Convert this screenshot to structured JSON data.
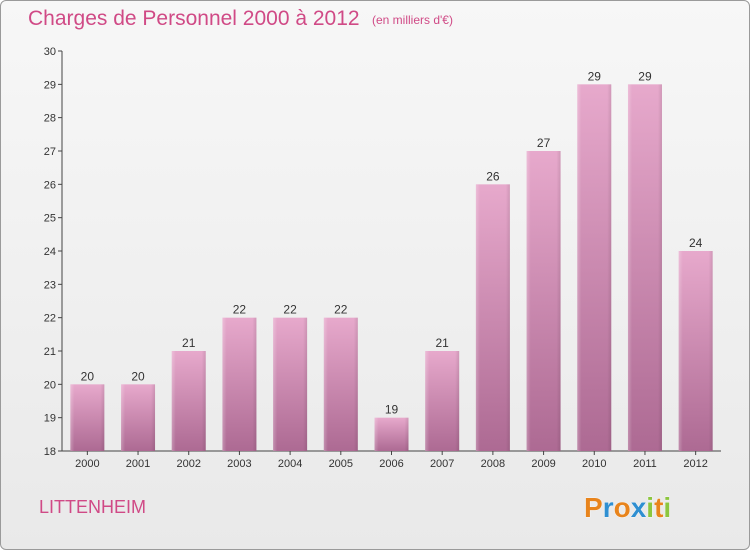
{
  "header": {
    "title": "Charges de Personnel 2000 à 2012",
    "subtitle": "(en milliers d'€)"
  },
  "footer": {
    "commune": "LITTENHEIM",
    "logo_text": "Proxiti",
    "logo_letters": [
      {
        "ch": "P",
        "color": "#e8841c"
      },
      {
        "ch": "r",
        "color": "#2f8fd1"
      },
      {
        "ch": "o",
        "color": "#e8841c"
      },
      {
        "ch": "x",
        "color": "#2f8fd1"
      },
      {
        "ch": "i",
        "color": "#8cc63f"
      },
      {
        "ch": "t",
        "color": "#e8841c"
      },
      {
        "ch": "i",
        "color": "#8cc63f"
      }
    ]
  },
  "colors": {
    "title": "#d04a86",
    "bar_top": "#e7a9cc",
    "bar_bottom": "#ad6a93",
    "axis": "#444444"
  },
  "chart_data": {
    "type": "bar",
    "title": "Charges de Personnel 2000 à 2012",
    "subtitle": "(en milliers d'€)",
    "xlabel": "",
    "ylabel": "",
    "categories": [
      "2000",
      "2001",
      "2002",
      "2003",
      "2004",
      "2005",
      "2006",
      "2007",
      "2008",
      "2009",
      "2010",
      "2011",
      "2012"
    ],
    "values": [
      20,
      20,
      21,
      22,
      22,
      22,
      19,
      21,
      26,
      27,
      29,
      29,
      24
    ],
    "ylim": [
      18,
      30
    ],
    "yticks": [
      18,
      19,
      20,
      21,
      22,
      23,
      24,
      25,
      26,
      27,
      28,
      29,
      30
    ],
    "grid": false,
    "legend": "none",
    "data_labels": true
  }
}
